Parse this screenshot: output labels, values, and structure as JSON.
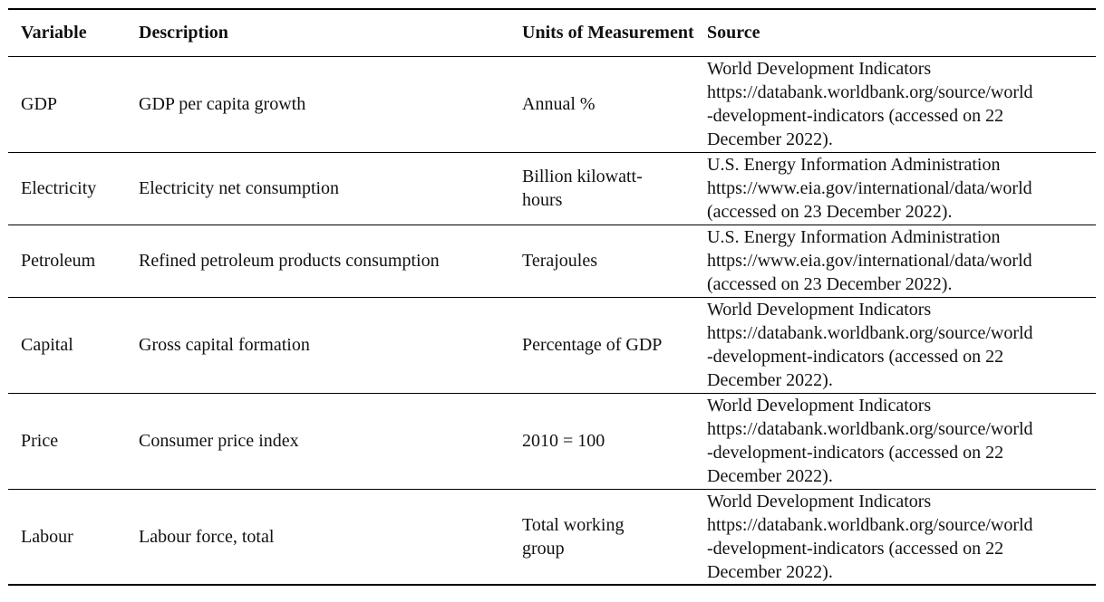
{
  "table": {
    "headers": {
      "variable": "Variable",
      "description": "Description",
      "units": "Units of Measurement",
      "source": "Source"
    },
    "rows": [
      {
        "variable": "GDP",
        "description": "GDP per capita growth",
        "units": "Annual %",
        "source_lines": [
          "World Development Indicators",
          "https://databank.worldbank.org/source/world",
          "-development-indicators (accessed on 22",
          "December 2022)."
        ]
      },
      {
        "variable": "Electricity",
        "description": "Electricity net consumption",
        "units": "Billion kilowatt-hours",
        "source_lines": [
          "U.S. Energy Information Administration",
          "https://www.eia.gov/international/data/world",
          "(accessed on 23 December 2022)."
        ]
      },
      {
        "variable": "Petroleum",
        "description": "Refined petroleum products consumption",
        "units": "Terajoules",
        "source_lines": [
          "U.S. Energy Information Administration",
          "https://www.eia.gov/international/data/world",
          "(accessed on 23 December 2022)."
        ]
      },
      {
        "variable": "Capital",
        "description": "Gross capital formation",
        "units": "Percentage of GDP",
        "source_lines": [
          "World Development Indicators",
          "https://databank.worldbank.org/source/world",
          "-development-indicators (accessed on 22",
          "December 2022)."
        ]
      },
      {
        "variable": "Price",
        "description": "Consumer price index",
        "units": "2010 = 100",
        "source_lines": [
          "World Development Indicators",
          "https://databank.worldbank.org/source/world",
          "-development-indicators (accessed on 22",
          "December 2022)."
        ]
      },
      {
        "variable": "Labour",
        "description": "Labour force, total",
        "units": "Total working group",
        "source_lines": [
          "World Development Indicators",
          "https://databank.worldbank.org/source/world",
          "-development-indicators (accessed on 22",
          "December 2022)."
        ]
      }
    ]
  }
}
